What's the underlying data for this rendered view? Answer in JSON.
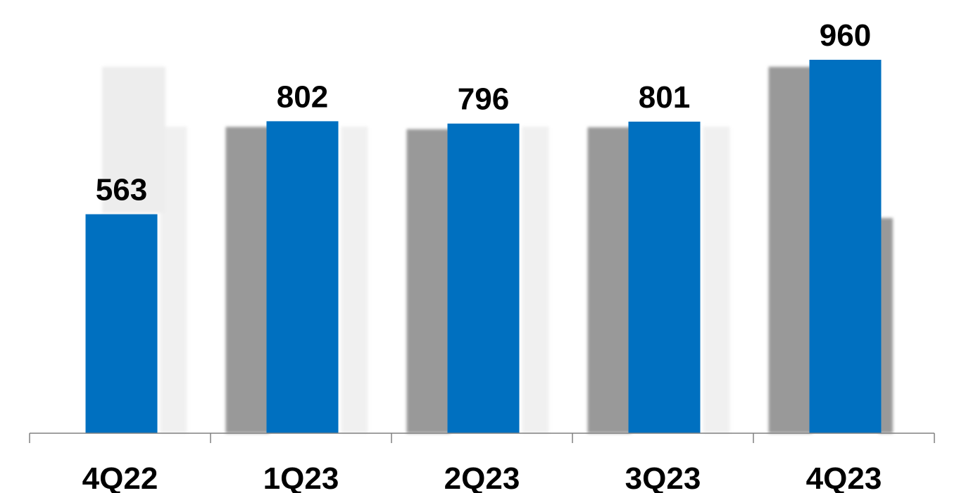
{
  "chart_data": {
    "type": "bar",
    "title": "",
    "xlabel": "",
    "ylabel": "",
    "categories": [
      "4Q22",
      "1Q23",
      "2Q23",
      "3Q23",
      "4Q23"
    ],
    "values": [
      563,
      802,
      796,
      801,
      960
    ],
    "ylim": [
      0,
      1000
    ],
    "grid": false,
    "legend": "none",
    "bar_color": "#0070C0",
    "shadow_color": "#999999",
    "faint_color": "#EDEDED",
    "axis_color": "#808080",
    "label_color": "#000000"
  }
}
